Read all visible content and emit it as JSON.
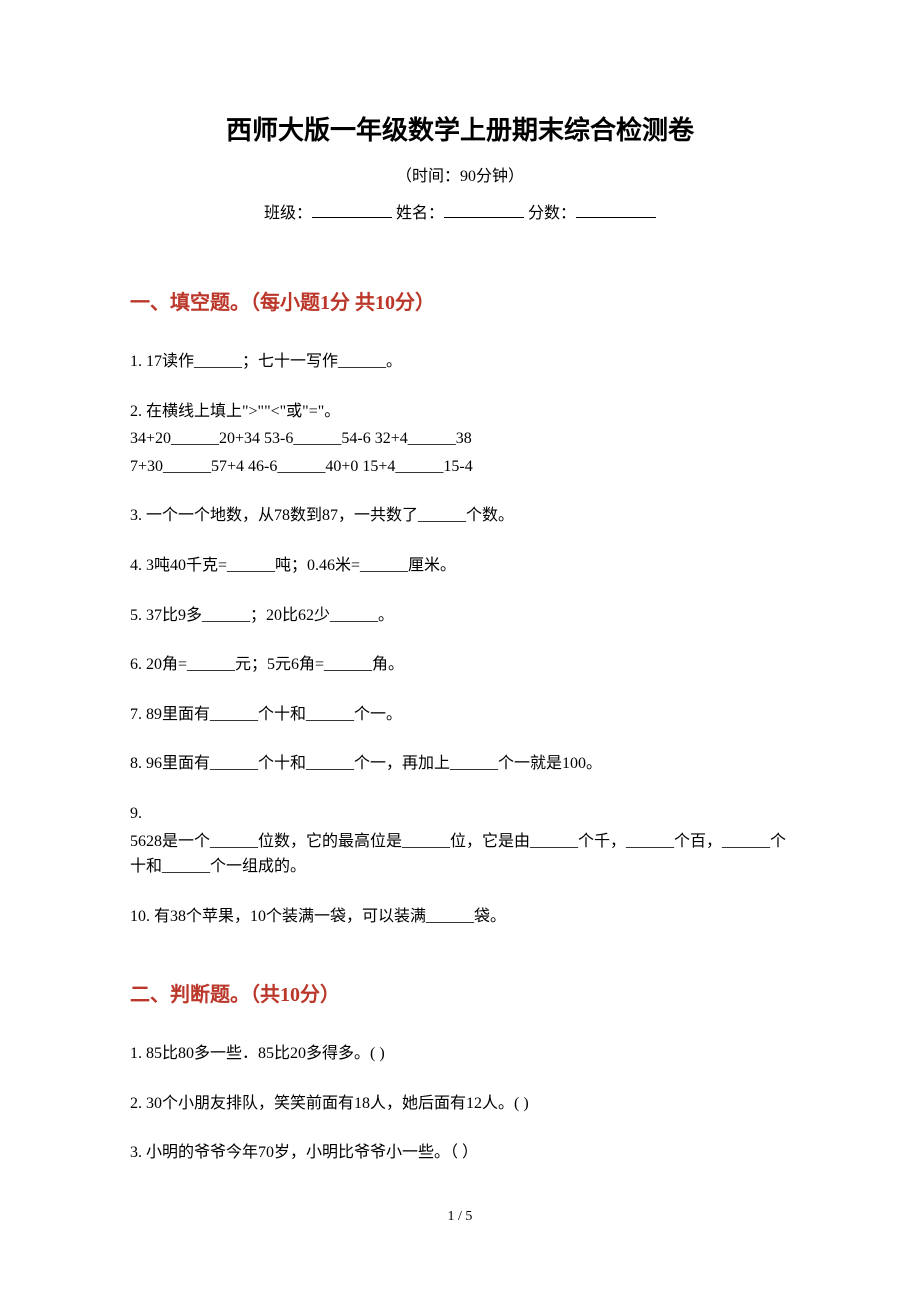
{
  "header": {
    "title": "西师大版一年级数学上册期末综合检测卷",
    "subtitle": "（时间：90分钟）",
    "class_label": "班级：",
    "name_label": "姓名：",
    "score_label": "分数："
  },
  "section1": {
    "header": "一、填空题。（每小题1分 共10分）",
    "q1": "1. 17读作______；七十一写作______。",
    "q2_line1": "2. 在横线上填上\">\"\"<\"或\"=\"。",
    "q2_line2": "34+20______20+34    53-6______54-6    32+4______38",
    "q2_line3": "7+30______57+4    46-6______40+0    15+4______15-4",
    "q3": "3. 一个一个地数，从78数到87，一共数了______个数。",
    "q4": "4. 3吨40千克=______吨；0.46米=______厘米。",
    "q5": "5. 37比9多______；20比62少______。",
    "q6": "6. 20角=______元；5元6角=______角。",
    "q7": "7. 89里面有______个十和______个一。",
    "q8": "8. 96里面有______个十和______个一，再加上______个一就是100。",
    "q9_line1": "9.",
    "q9_line2": "5628是一个______位数，它的最高位是______位，它是由______个千，______个百，______个十和______个一组成的。",
    "q10": "10. 有38个苹果，10个装满一袋，可以装满______袋。"
  },
  "section2": {
    "header": "二、判断题。（共10分）",
    "q1": "1. 85比80多一些．85比20多得多。(   )",
    "q2": "2. 30个小朋友排队，笑笑前面有18人，她后面有12人。(   )",
    "q3": "3. 小明的爷爷今年70岁，小明比爷爷小一些。（  ）"
  },
  "footer": {
    "page_number": "1 / 5"
  },
  "colors": {
    "text_color": "#000000",
    "section_header_color": "#ba372a",
    "background_color": "#ffffff"
  },
  "typography": {
    "title_fontsize": 26,
    "section_header_fontsize": 20,
    "body_fontsize": 16,
    "page_number_fontsize": 14,
    "font_family": "SimSun"
  }
}
